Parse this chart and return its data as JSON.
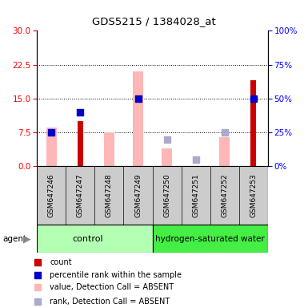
{
  "title": "GDS5215 / 1384028_at",
  "samples": [
    "GSM647246",
    "GSM647247",
    "GSM647248",
    "GSM647249",
    "GSM647250",
    "GSM647251",
    "GSM647252",
    "GSM647253"
  ],
  "group_split": 4,
  "group_names": [
    "control",
    "hydrogen-saturated water"
  ],
  "group_color_light": "#b3ffb3",
  "group_color_dark": "#44ee44",
  "ylim_left": [
    0,
    30
  ],
  "ylim_right": [
    0,
    100
  ],
  "yticks_left": [
    0,
    7.5,
    15,
    22.5,
    30
  ],
  "yticks_right": [
    0,
    25,
    50,
    75,
    100
  ],
  "red_bars": [
    0,
    10.0,
    0,
    0,
    0,
    0,
    0,
    19.0
  ],
  "blue_squares_right": [
    25.0,
    40.0,
    null,
    50.0,
    null,
    null,
    null,
    50.0
  ],
  "pink_bars": [
    8.5,
    0,
    7.5,
    21.0,
    4.0,
    0,
    6.5,
    0
  ],
  "light_blue_squares_right": [
    null,
    null,
    null,
    null,
    20.0,
    5.0,
    25.0,
    null
  ],
  "red_color": "#cc0000",
  "blue_color": "#0000cc",
  "pink_color": "#ffb6b6",
  "light_blue_color": "#aaaacc",
  "sample_bg": "#cccccc",
  "legend_labels": [
    "count",
    "percentile rank within the sample",
    "value, Detection Call = ABSENT",
    "rank, Detection Call = ABSENT"
  ]
}
